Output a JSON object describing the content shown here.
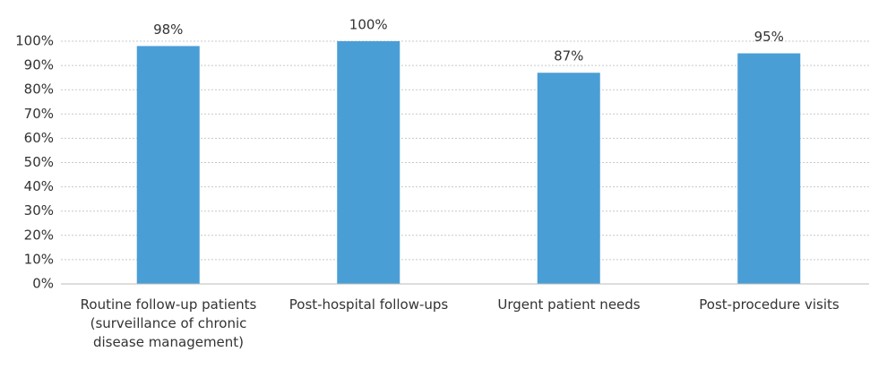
{
  "chart_data": {
    "type": "bar",
    "categories": [
      "Routine follow-up patients (surveillance of chronic disease management)",
      "Post-hospital follow-ups",
      "Urgent patient needs",
      "Post-procedure visits"
    ],
    "values": [
      98,
      100,
      87,
      95
    ],
    "value_labels": [
      "98%",
      "100%",
      "87%",
      "95%"
    ],
    "color": "#4a9ed6",
    "ylim": [
      0,
      100
    ],
    "yticks": [
      {
        "value": 0,
        "label": "0%"
      },
      {
        "value": 10,
        "label": "10%"
      },
      {
        "value": 20,
        "label": "20%"
      },
      {
        "value": 30,
        "label": "30%"
      },
      {
        "value": 40,
        "label": "40%"
      },
      {
        "value": 50,
        "label": "50%"
      },
      {
        "value": 60,
        "label": "60%"
      },
      {
        "value": 70,
        "label": "70%"
      },
      {
        "value": 80,
        "label": "80%"
      },
      {
        "value": 90,
        "label": "90%"
      },
      {
        "value": 100,
        "label": "100%"
      }
    ],
    "grid": true
  }
}
